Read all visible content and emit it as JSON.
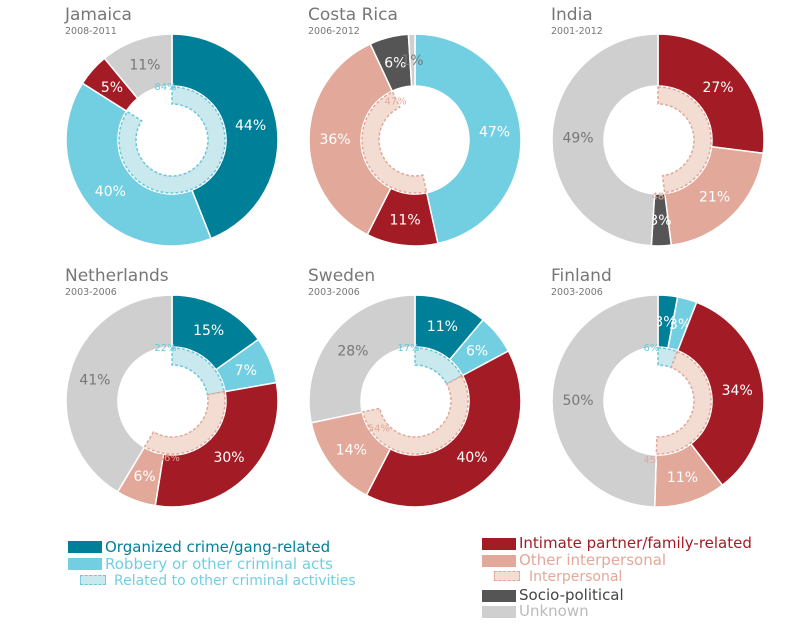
{
  "colors": {
    "organized": "#007f99",
    "robbery": "#72cfe2",
    "related_inner": "#c9e9ef",
    "related_border": "#6cc7da",
    "intimate": "#a31c25",
    "other_interpersonal": "#e2a899",
    "interpersonal_inner": "#f3ddd3",
    "interpersonal_border": "#e2a899",
    "socio": "#555555",
    "unknown": "#cfcfcf",
    "title": "#777777"
  },
  "legend": {
    "organized": "Organized crime/gang-related",
    "robbery": "Robbery or other criminal acts",
    "related": "Related to other criminal activities",
    "intimate": "Intimate partner/family-related",
    "other_interpersonal": "Other interpersonal",
    "interpersonal": "Interpersonal",
    "socio": "Socio-political",
    "unknown": "Unknown"
  },
  "chart_data": [
    {
      "type": "pie",
      "title": "Jamaica",
      "subtitle": "2008-2011",
      "outer": [
        {
          "category": "organized",
          "value": 44,
          "label": "44%"
        },
        {
          "category": "robbery",
          "value": 40,
          "label": "40%"
        },
        {
          "category": "intimate",
          "value": 5,
          "label": "5%"
        },
        {
          "category": "unknown",
          "value": 11,
          "label": "11%"
        }
      ],
      "inner": {
        "group": "related",
        "value": 84,
        "label": "84%"
      }
    },
    {
      "type": "pie",
      "title": "Costa Rica",
      "subtitle": "2006-2012",
      "outer": [
        {
          "category": "robbery",
          "value": 47,
          "label": "47%"
        },
        {
          "category": "intimate",
          "value": 11,
          "label": "11%"
        },
        {
          "category": "other_interpersonal",
          "value": 36,
          "label": "36%"
        },
        {
          "category": "socio",
          "value": 6,
          "label": "6%"
        },
        {
          "category": "unknown",
          "value": 1,
          "label": "1%"
        }
      ],
      "inner": {
        "group": "interpersonal",
        "value": 47,
        "label": "47%"
      }
    },
    {
      "type": "pie",
      "title": "India",
      "subtitle": "2001-2012",
      "outer": [
        {
          "category": "intimate",
          "value": 27,
          "label": "27%"
        },
        {
          "category": "other_interpersonal",
          "value": 21,
          "label": "21%"
        },
        {
          "category": "socio",
          "value": 3,
          "label": "3%"
        },
        {
          "category": "unknown",
          "value": 49,
          "label": "49%"
        }
      ],
      "inner": {
        "group": "interpersonal",
        "value": 48,
        "label": "48%"
      }
    },
    {
      "type": "pie",
      "title": "Netherlands",
      "subtitle": "2003-2006",
      "outer": [
        {
          "category": "organized",
          "value": 15,
          "label": "15%"
        },
        {
          "category": "robbery",
          "value": 7,
          "label": "7%"
        },
        {
          "category": "intimate",
          "value": 30,
          "label": "30%"
        },
        {
          "category": "other_interpersonal",
          "value": 6,
          "label": "6%"
        },
        {
          "category": "unknown",
          "value": 41,
          "label": "41%"
        }
      ],
      "inner_groups": [
        {
          "group": "related",
          "value": 22,
          "label": "22%"
        },
        {
          "group": "interpersonal",
          "value": 36,
          "label": "36%"
        }
      ]
    },
    {
      "type": "pie",
      "title": "Sweden",
      "subtitle": "2003-2006",
      "outer": [
        {
          "category": "organized",
          "value": 11,
          "label": "11%"
        },
        {
          "category": "robbery",
          "value": 6,
          "label": "6%"
        },
        {
          "category": "intimate",
          "value": 40,
          "label": "40%"
        },
        {
          "category": "other_interpersonal",
          "value": 14,
          "label": "14%"
        },
        {
          "category": "unknown",
          "value": 28,
          "label": "28%"
        }
      ],
      "inner_groups": [
        {
          "group": "related",
          "value": 17,
          "label": "17%"
        },
        {
          "group": "interpersonal",
          "value": 54,
          "label": "54%"
        }
      ]
    },
    {
      "type": "pie",
      "title": "Finland",
      "subtitle": "2003-2006",
      "outer": [
        {
          "category": "organized",
          "value": 3,
          "label": "3%"
        },
        {
          "category": "robbery",
          "value": 3,
          "label": "3%"
        },
        {
          "category": "intimate",
          "value": 34,
          "label": "34%"
        },
        {
          "category": "other_interpersonal",
          "value": 11,
          "label": "11%"
        },
        {
          "category": "unknown",
          "value": 50,
          "label": "50%"
        }
      ],
      "inner_groups": [
        {
          "group": "related",
          "value": 6,
          "label": "6%"
        },
        {
          "group": "interpersonal",
          "value": 45,
          "label": "45%"
        }
      ]
    }
  ]
}
